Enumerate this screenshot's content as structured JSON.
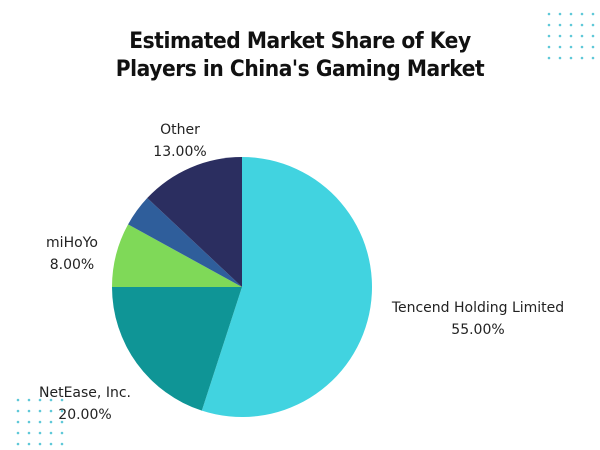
{
  "chart_data": {
    "type": "pie",
    "title": "Estimated Market Share of Key Players in China's Gaming Market",
    "categories": [
      "Tencend Holding Limited",
      "NetEase, Inc.",
      "miHoYo",
      null,
      "Other"
    ],
    "values": [
      55,
      20,
      8,
      4,
      13
    ],
    "value_labels": [
      "55.00%",
      "20.00%",
      "8.00%",
      null,
      "13.00%"
    ],
    "colors": [
      "#41d3e0",
      "#0f9596",
      "#7fd958",
      "#2f5e9b",
      "#2b2e60"
    ]
  }
}
